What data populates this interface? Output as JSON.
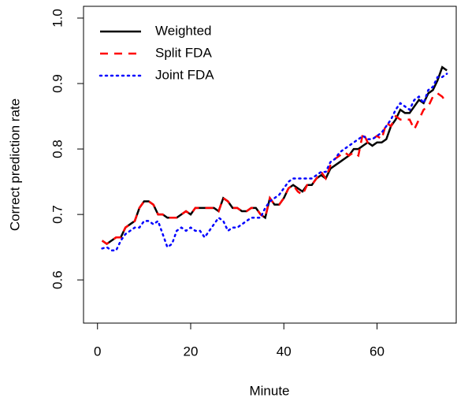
{
  "chart_data": {
    "type": "line",
    "x_label": "Minute",
    "y_label": "Correct prediction rate",
    "x": [
      1,
      2,
      3,
      4,
      5,
      6,
      7,
      8,
      9,
      10,
      11,
      12,
      13,
      14,
      15,
      16,
      17,
      18,
      19,
      20,
      21,
      22,
      23,
      24,
      25,
      26,
      27,
      28,
      29,
      30,
      31,
      32,
      33,
      34,
      35,
      36,
      37,
      38,
      39,
      40,
      41,
      42,
      43,
      44,
      45,
      46,
      47,
      48,
      49,
      50,
      51,
      52,
      53,
      54,
      55,
      56,
      57,
      58,
      59,
      60,
      61,
      62,
      63,
      64,
      65,
      66,
      67,
      68,
      69,
      70,
      71,
      72,
      73,
      74,
      75
    ],
    "series": [
      {
        "name": "Weighted",
        "color": "#000000",
        "dash": "solid",
        "values": [
          0.66,
          0.655,
          0.66,
          0.665,
          0.665,
          0.68,
          0.685,
          0.69,
          0.71,
          0.72,
          0.72,
          0.715,
          0.7,
          0.7,
          0.695,
          0.695,
          0.695,
          0.7,
          0.705,
          0.7,
          0.71,
          0.71,
          0.71,
          0.71,
          0.71,
          0.705,
          0.725,
          0.72,
          0.71,
          0.71,
          0.705,
          0.705,
          0.71,
          0.71,
          0.7,
          0.695,
          0.725,
          0.715,
          0.715,
          0.725,
          0.74,
          0.745,
          0.74,
          0.735,
          0.745,
          0.745,
          0.755,
          0.76,
          0.755,
          0.77,
          0.775,
          0.78,
          0.785,
          0.79,
          0.8,
          0.8,
          0.805,
          0.81,
          0.805,
          0.81,
          0.81,
          0.815,
          0.835,
          0.845,
          0.86,
          0.855,
          0.855,
          0.865,
          0.875,
          0.87,
          0.885,
          0.89,
          0.905,
          0.925,
          0.92
        ]
      },
      {
        "name": "Split FDA",
        "color": "#ff0000",
        "dash": "dashed",
        "values": [
          0.66,
          0.655,
          0.66,
          0.665,
          0.665,
          0.68,
          0.685,
          0.69,
          0.71,
          0.72,
          0.72,
          0.715,
          0.7,
          0.7,
          0.695,
          0.695,
          0.695,
          0.7,
          0.705,
          0.7,
          0.71,
          0.71,
          0.71,
          0.71,
          0.71,
          0.705,
          0.725,
          0.72,
          0.71,
          0.71,
          0.705,
          0.705,
          0.71,
          0.71,
          0.7,
          0.695,
          0.725,
          0.715,
          0.715,
          0.725,
          0.74,
          0.745,
          0.735,
          0.73,
          0.745,
          0.745,
          0.755,
          0.765,
          0.755,
          0.775,
          0.785,
          0.79,
          0.795,
          0.79,
          0.795,
          0.79,
          0.825,
          0.81,
          0.815,
          0.82,
          0.815,
          0.84,
          0.835,
          0.85,
          0.845,
          0.845,
          0.845,
          0.83,
          0.845,
          0.86,
          0.865,
          0.88,
          0.885,
          0.88,
          0.87
        ]
      },
      {
        "name": "Joint FDA",
        "color": "#0000ff",
        "dash": "dotted",
        "values": [
          0.648,
          0.65,
          0.645,
          0.645,
          0.66,
          0.67,
          0.675,
          0.68,
          0.68,
          0.69,
          0.69,
          0.685,
          0.69,
          0.67,
          0.65,
          0.655,
          0.675,
          0.68,
          0.675,
          0.68,
          0.675,
          0.675,
          0.665,
          0.675,
          0.685,
          0.695,
          0.69,
          0.675,
          0.68,
          0.68,
          0.685,
          0.69,
          0.695,
          0.695,
          0.695,
          0.71,
          0.72,
          0.725,
          0.73,
          0.74,
          0.75,
          0.755,
          0.755,
          0.755,
          0.755,
          0.755,
          0.76,
          0.765,
          0.765,
          0.78,
          0.785,
          0.795,
          0.8,
          0.805,
          0.81,
          0.815,
          0.82,
          0.815,
          0.815,
          0.82,
          0.825,
          0.835,
          0.845,
          0.86,
          0.87,
          0.865,
          0.86,
          0.875,
          0.88,
          0.87,
          0.89,
          0.895,
          0.91,
          0.91,
          0.915
        ]
      }
    ],
    "xlim": [
      -3,
      77
    ],
    "ylim": [
      0.534,
      1.018
    ],
    "xticks": [
      0,
      20,
      40,
      60
    ],
    "yticks": [
      0.6,
      0.7,
      0.8,
      0.9,
      {
        "value": 1,
        "label": "1.0"
      }
    ],
    "legend": "top-left"
  }
}
